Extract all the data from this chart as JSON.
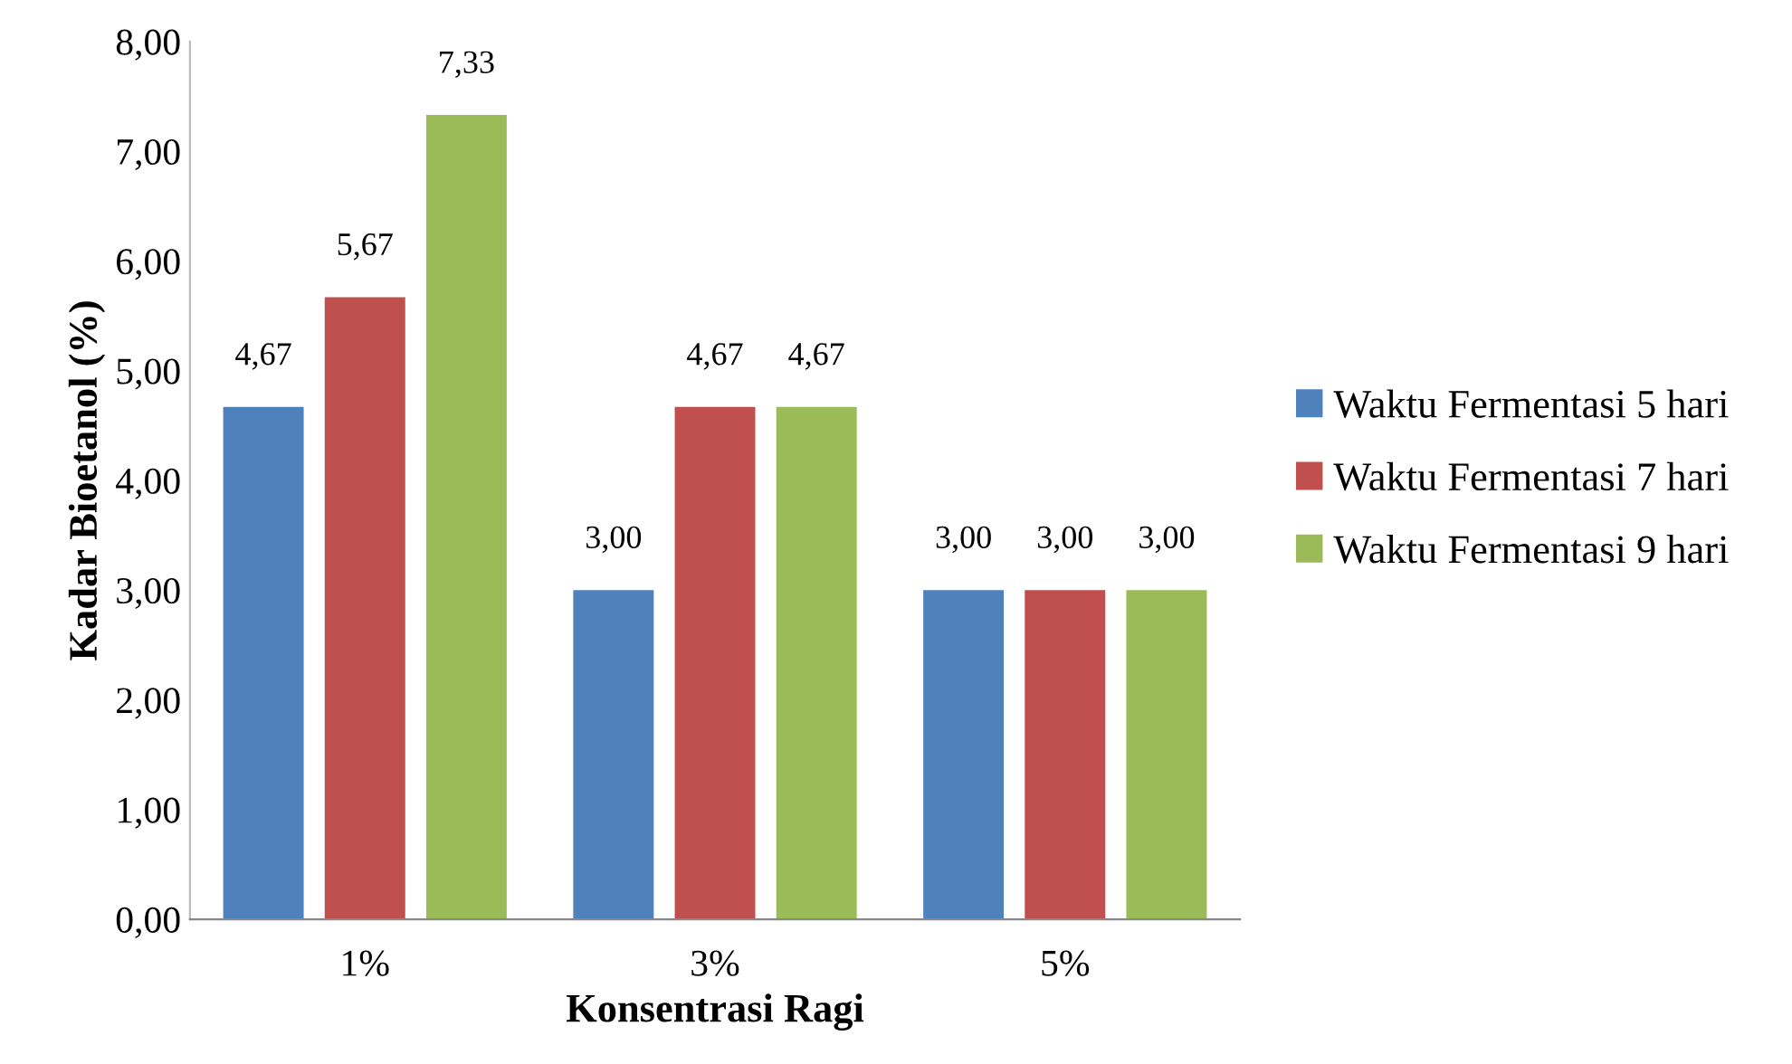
{
  "chart_data": {
    "type": "bar",
    "xlabel": "Konsentrasi Ragi",
    "ylabel": "Kadar Bioetanol (%)",
    "categories": [
      "1%",
      "3%",
      "5%"
    ],
    "series": [
      {
        "name": "Waktu Fermentasi 5 hari",
        "color": "#4f81bd",
        "values": [
          4.67,
          3.0,
          3.0
        ],
        "value_labels": [
          "4,67",
          "3,00",
          "3,00"
        ]
      },
      {
        "name": "Waktu Fermentasi 7 hari",
        "color": "#c0504d",
        "values": [
          5.67,
          4.67,
          3.0
        ],
        "value_labels": [
          "5,67",
          "4,67",
          "3,00"
        ]
      },
      {
        "name": "Waktu Fermentasi 9 hari",
        "color": "#9bbb59",
        "values": [
          7.33,
          4.67,
          3.0
        ],
        "value_labels": [
          "7,33",
          "4,67",
          "3,00"
        ]
      }
    ],
    "ylim": [
      0,
      8
    ],
    "yticks": [
      {
        "value": 0,
        "label": "0,00"
      },
      {
        "value": 1,
        "label": "1,00"
      },
      {
        "value": 2,
        "label": "2,00"
      },
      {
        "value": 3,
        "label": "3,00"
      },
      {
        "value": 4,
        "label": "4,00"
      },
      {
        "value": 5,
        "label": "5,00"
      },
      {
        "value": 6,
        "label": "6,00"
      },
      {
        "value": 7,
        "label": "7,00"
      },
      {
        "value": 8,
        "label": "8,00"
      }
    ],
    "legend": "right",
    "grid": false
  }
}
